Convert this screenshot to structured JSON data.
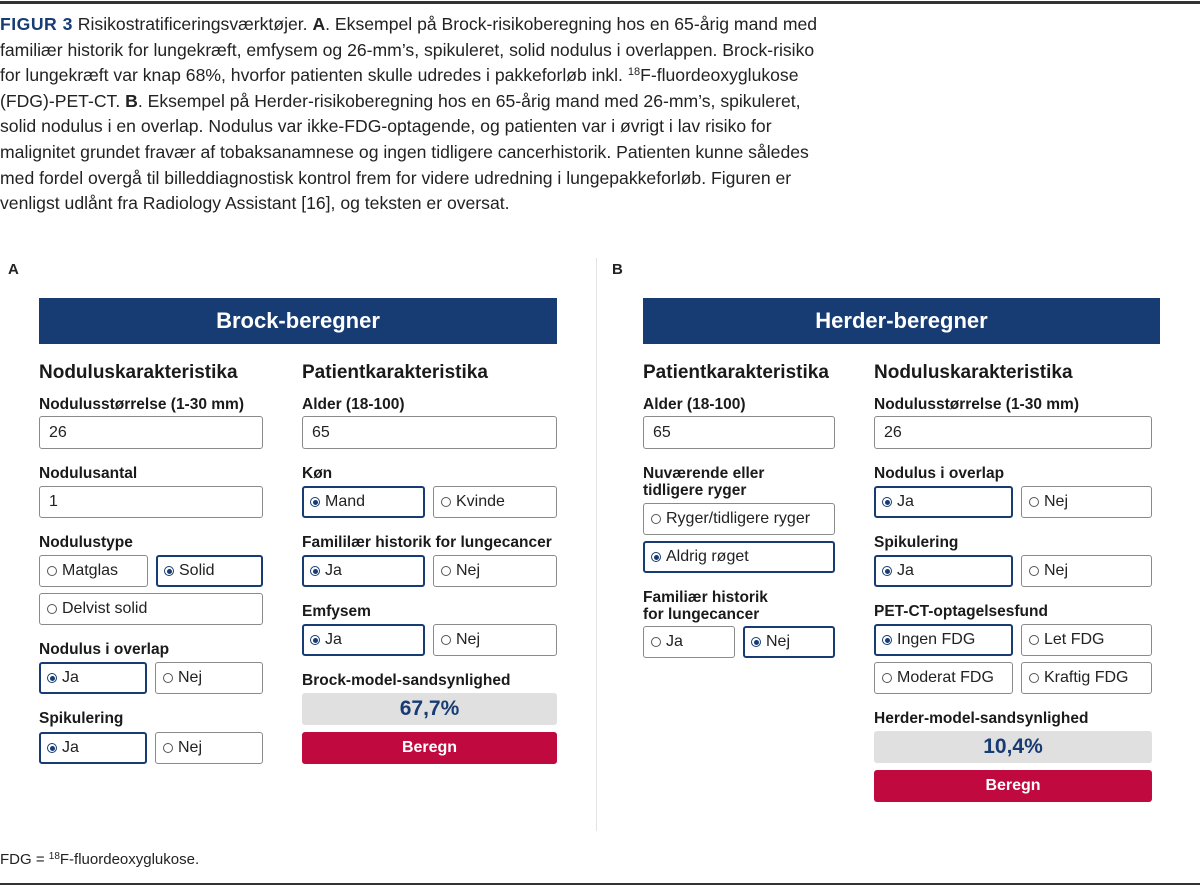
{
  "caption": {
    "label": "FIGUR 3",
    "title": " Risikostratificeringsværktøjer. ",
    "a_letter": "A",
    "a_text_1": ". Eksempel på Brock-risikoberegning hos en 65-årig mand med familiær historik for lungekræft, emfysem og 26-mm’s, spikuleret, solid nodulus i overlappen. Brock-risiko for lungekræft var knap 68%, hvorfor patienten skulle udredes i pakkeforløb inkl. ",
    "a_sup": "18",
    "a_text_2": "F-fluordeoxyglukose (FDG)-PET-CT. ",
    "b_letter": "B",
    "b_text": ". Eksempel på Herder-risikoberegning hos en 65-årig mand med 26-mm’s, spikuleret, solid nodulus i en overlap. Nodulus var ikke-FDG-optagende, og patienten var i øvrigt i lav risiko for malignitet grundet fravær af tobaksanamnese og ingen tidligere cancerhistorik. Patienten kunne således med fordel overgå til billeddiagnostisk kontrol frem for videre udredning i lungepakkeforløb. Figuren er venligst udlånt fra Radiology Assistant [16], og teksten er oversat."
  },
  "panel_a": {
    "letter": "A",
    "title": "Brock-beregner",
    "nodule": {
      "heading": "Noduluskarakteristika",
      "size_label": "Nodulusstørrelse (1-30 mm)",
      "size_value": "26",
      "count_label": "Nodulusantal",
      "count_value": "1",
      "type_label": "Nodulustype",
      "type_options": [
        {
          "label": "Matglas",
          "selected": false
        },
        {
          "label": "Solid",
          "selected": true
        },
        {
          "label": "Delvist solid",
          "selected": false
        }
      ],
      "upper_lobe_label": "Nodulus i overlap",
      "upper_lobe_options": [
        {
          "label": "Ja",
          "selected": true
        },
        {
          "label": "Nej",
          "selected": false
        }
      ],
      "spiculation_label": "Spikulering",
      "spiculation_options": [
        {
          "label": "Ja",
          "selected": true
        },
        {
          "label": "Nej",
          "selected": false
        }
      ]
    },
    "patient": {
      "heading": "Patientkarakteristika",
      "age_label": "Alder (18-100)",
      "age_value": "65",
      "sex_label": "Køn",
      "sex_options": [
        {
          "label": "Mand",
          "selected": true
        },
        {
          "label": "Kvinde",
          "selected": false
        }
      ],
      "family_label": "Famililær historik for lungecancer",
      "family_options": [
        {
          "label": "Ja",
          "selected": true
        },
        {
          "label": "Nej",
          "selected": false
        }
      ],
      "emphysema_label": "Emfysem",
      "emphysema_options": [
        {
          "label": "Ja",
          "selected": true
        },
        {
          "label": "Nej",
          "selected": false
        }
      ],
      "result_label": "Brock-model-sandsynlighed",
      "result_value": "67,7%",
      "button": "Beregn"
    }
  },
  "panel_b": {
    "letter": "B",
    "title": "Herder-beregner",
    "patient": {
      "heading": "Patientkarakteristika",
      "age_label": "Alder (18-100)",
      "age_value": "65",
      "smoker_label_1": "Nuværende eller",
      "smoker_label_2": "tidligere ryger",
      "smoker_options": [
        {
          "label": "Ryger/tidligere ryger",
          "selected": false
        },
        {
          "label": "Aldrig røget",
          "selected": true
        }
      ],
      "family_label_1": "Familiær historik",
      "family_label_2": "for lungecancer",
      "family_options": [
        {
          "label": "Ja",
          "selected": false
        },
        {
          "label": "Nej",
          "selected": true
        }
      ]
    },
    "nodule": {
      "heading": "Noduluskarakteristika",
      "size_label": "Nodulusstørrelse (1-30 mm)",
      "size_value": "26",
      "upper_lobe_label": "Nodulus i overlap",
      "upper_lobe_options": [
        {
          "label": "Ja",
          "selected": true
        },
        {
          "label": "Nej",
          "selected": false
        }
      ],
      "spiculation_label": "Spikulering",
      "spiculation_options": [
        {
          "label": "Ja",
          "selected": true
        },
        {
          "label": "Nej",
          "selected": false
        }
      ],
      "pet_label": "PET-CT-optagelsesfund",
      "pet_options": [
        {
          "label": "Ingen FDG",
          "selected": true
        },
        {
          "label": "Let FDG",
          "selected": false
        },
        {
          "label": "Moderat FDG",
          "selected": false
        },
        {
          "label": "Kraftig FDG",
          "selected": false
        }
      ],
      "result_label": "Herder-model-sandsynlighed",
      "result_value": "10,4%",
      "button": "Beregn"
    }
  },
  "footnote": {
    "text_1": "FDG = ",
    "sup": "18",
    "text_2": "F-fluordeoxyglukose."
  },
  "colors": {
    "brand_navy": "#173c73",
    "button_red": "#c00a3f",
    "result_bg": "#e0e0e0"
  }
}
